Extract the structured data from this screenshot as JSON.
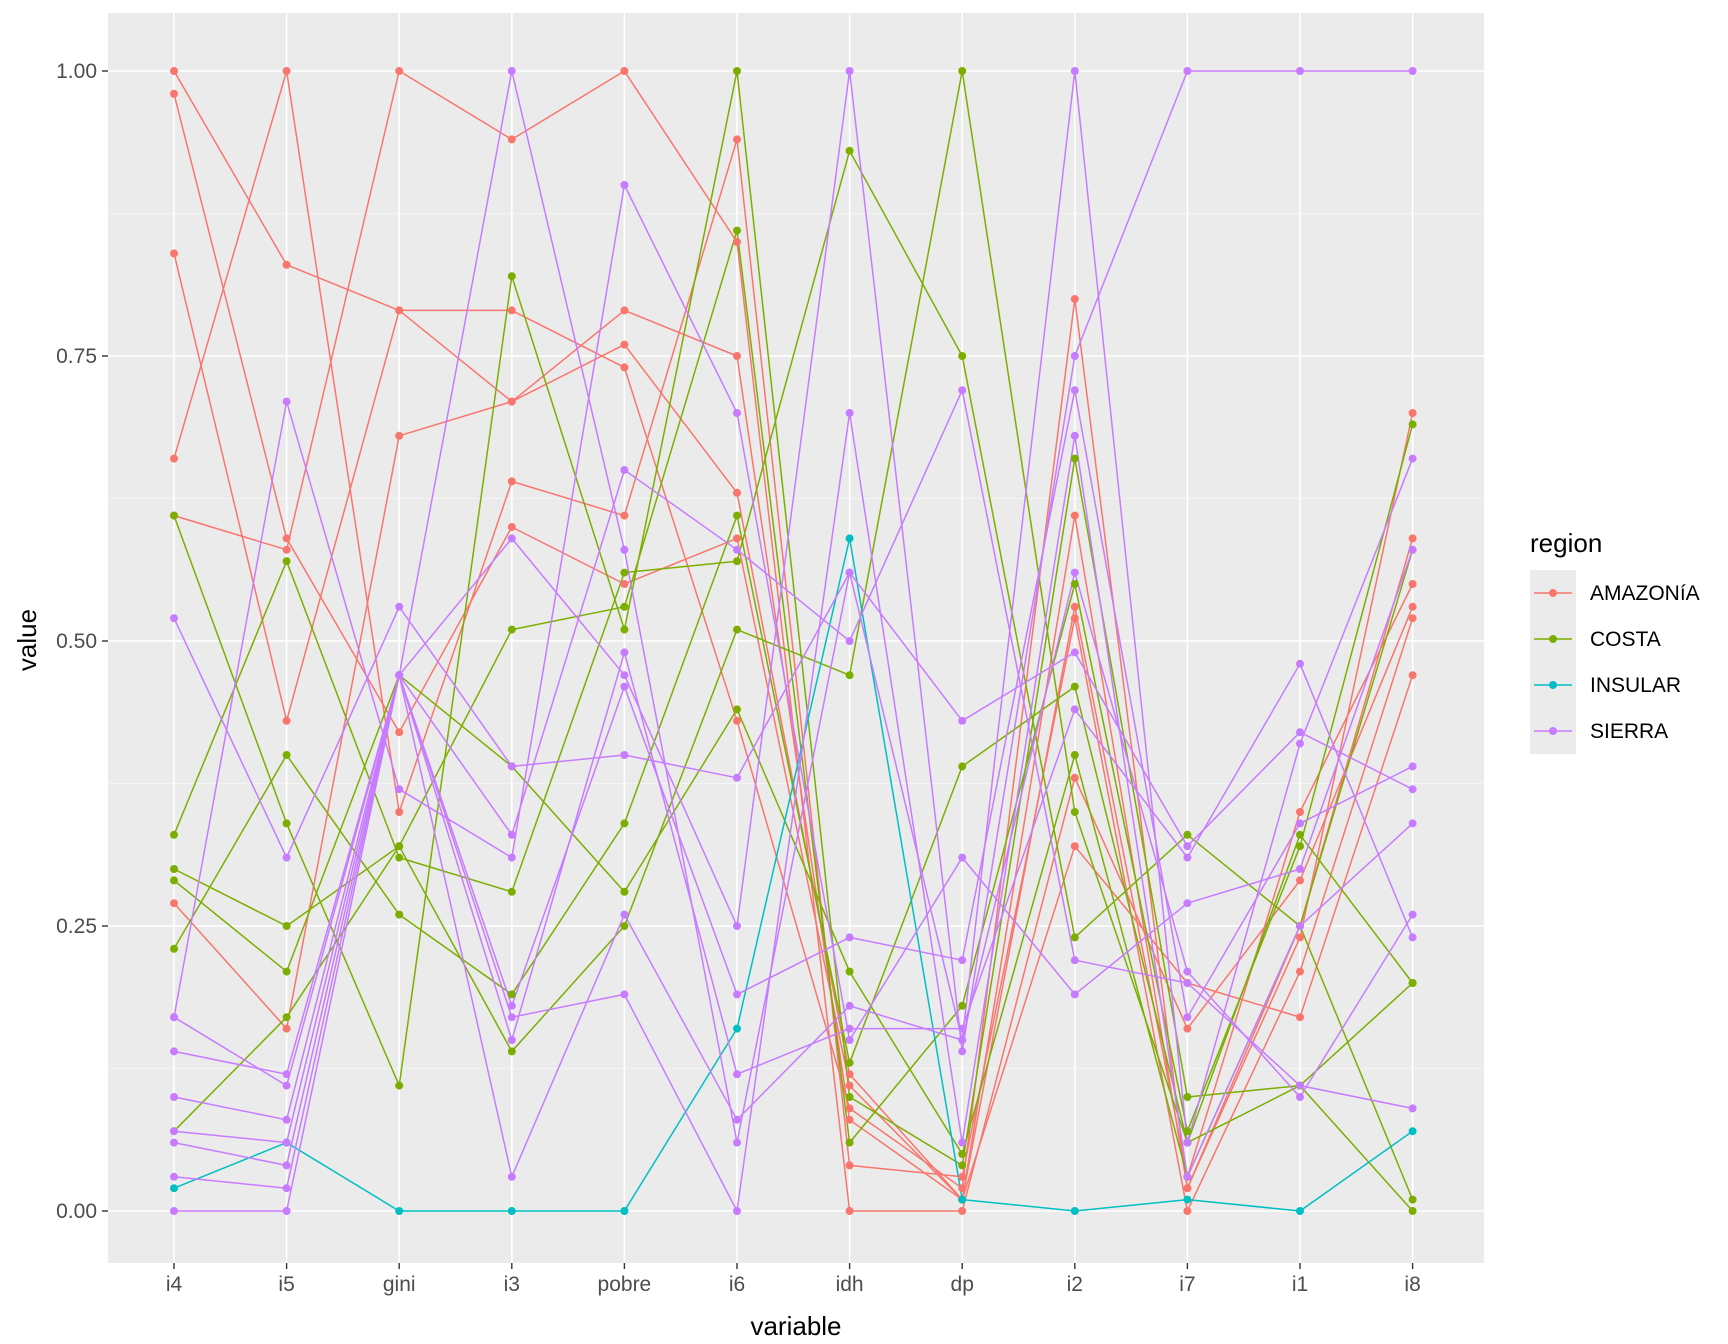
{
  "chart_data": {
    "type": "line",
    "subtype": "parallel-coordinates",
    "xlabel": "variable",
    "ylabel": "value",
    "ylim": [
      -0.05,
      1.05
    ],
    "yticks": [
      0,
      0.25,
      0.5,
      0.75,
      1
    ],
    "ytick_labels": [
      "0.00",
      "0.25",
      "0.50",
      "0.75",
      "1.00"
    ],
    "categories": [
      "i4",
      "i5",
      "gini",
      "i3",
      "pobre",
      "i6",
      "idh",
      "dp",
      "i2",
      "i7",
      "i1",
      "i8"
    ],
    "legend": {
      "title": "region",
      "position": "right",
      "entries": [
        {
          "name": "AMAZONíA",
          "color": "#F8766D"
        },
        {
          "name": "COSTA",
          "color": "#7CAE00"
        },
        {
          "name": "INSULAR",
          "color": "#00BFC4"
        },
        {
          "name": "SIERRA",
          "color": "#C77CFF"
        }
      ]
    },
    "series": [
      {
        "region": "AMAZONíA",
        "values": [
          1.0,
          0.83,
          0.79,
          0.79,
          0.74,
          0.43,
          0.09,
          0.02,
          0.8,
          0.02,
          0.24,
          0.7
        ]
      },
      {
        "region": "AMAZONíA",
        "values": [
          0.98,
          0.59,
          0.42,
          0.6,
          0.55,
          0.59,
          0.11,
          0.01,
          0.61,
          0.02,
          0.25,
          0.59
        ]
      },
      {
        "region": "AMAZONíA",
        "values": [
          0.84,
          0.43,
          0.79,
          0.71,
          0.76,
          0.63,
          0.12,
          0.01,
          0.53,
          0.03,
          0.35,
          0.55
        ]
      },
      {
        "region": "AMAZONíA",
        "values": [
          0.66,
          1.0,
          0.35,
          0.64,
          0.61,
          0.94,
          0.04,
          0.03,
          0.52,
          0.0,
          0.21,
          0.52
        ]
      },
      {
        "region": "AMAZONíA",
        "values": [
          0.61,
          0.58,
          1.0,
          0.94,
          1.0,
          0.85,
          0.0,
          0.0,
          0.38,
          0.16,
          0.29,
          0.53
        ]
      },
      {
        "region": "AMAZONíA",
        "values": [
          0.27,
          0.16,
          0.68,
          0.71,
          0.79,
          0.75,
          0.08,
          0.01,
          0.32,
          0.2,
          0.17,
          0.47
        ]
      },
      {
        "region": "COSTA",
        "values": [
          0.61,
          0.34,
          0.11,
          0.82,
          0.51,
          1.0,
          0.1,
          0.04,
          0.66,
          0.1,
          0.11,
          0.0
        ]
      },
      {
        "region": "COSTA",
        "values": [
          0.33,
          0.57,
          0.31,
          0.28,
          0.56,
          0.57,
          0.93,
          0.75,
          0.24,
          0.33,
          0.25,
          0.01
        ]
      },
      {
        "region": "COSTA",
        "values": [
          0.3,
          0.25,
          0.32,
          0.51,
          0.53,
          0.86,
          0.06,
          0.18,
          0.55,
          0.07,
          0.32,
          0.69
        ]
      },
      {
        "region": "COSTA",
        "values": [
          0.29,
          0.21,
          0.47,
          0.39,
          0.28,
          0.44,
          0.21,
          0.05,
          0.4,
          0.03,
          0.25,
          0.58
        ]
      },
      {
        "region": "COSTA",
        "values": [
          0.23,
          0.4,
          0.26,
          0.19,
          0.34,
          0.61,
          0.13,
          0.39,
          0.46,
          0.06,
          0.33,
          0.2
        ]
      },
      {
        "region": "COSTA",
        "values": [
          0.07,
          0.17,
          0.32,
          0.14,
          0.25,
          0.51,
          0.47,
          1.0,
          0.35,
          0.06,
          0.11,
          0.2
        ]
      },
      {
        "region": "INSULAR",
        "values": [
          0.02,
          0.06,
          0.0,
          0.0,
          0.0,
          0.16,
          0.59,
          0.01,
          0.0,
          0.01,
          0.0,
          0.07
        ]
      },
      {
        "region": "SIERRA",
        "values": [
          0.52,
          0.31,
          0.53,
          0.39,
          0.4,
          0.38,
          0.56,
          0.43,
          0.49,
          0.32,
          0.42,
          0.37
        ]
      },
      {
        "region": "SIERRA",
        "values": [
          0.17,
          0.71,
          0.37,
          0.31,
          0.9,
          0.7,
          0.15,
          0.31,
          0.19,
          0.27,
          0.3,
          0.58
        ]
      },
      {
        "region": "SIERRA",
        "values": [
          0.17,
          0.11,
          0.47,
          0.33,
          0.65,
          0.58,
          0.5,
          0.72,
          0.22,
          0.2,
          0.11,
          0.09
        ]
      },
      {
        "region": "SIERRA",
        "values": [
          0.14,
          0.12,
          0.47,
          0.59,
          0.47,
          0.25,
          1.0,
          0.14,
          0.75,
          1.0,
          1.0,
          1.0
        ]
      },
      {
        "region": "SIERRA",
        "values": [
          0.1,
          0.08,
          0.47,
          1.0,
          0.58,
          0.06,
          0.56,
          0.15,
          1.0,
          0.06,
          0.41,
          0.66
        ]
      },
      {
        "region": "SIERRA",
        "values": [
          0.07,
          0.06,
          0.47,
          0.18,
          0.46,
          0.19,
          0.24,
          0.22,
          0.72,
          0.17,
          0.34,
          0.39
        ]
      },
      {
        "region": "SIERRA",
        "values": [
          0.06,
          0.04,
          0.47,
          0.17,
          0.19,
          0.0,
          0.7,
          0.06,
          0.68,
          0.03,
          0.25,
          0.34
        ]
      },
      {
        "region": "SIERRA",
        "values": [
          0.03,
          0.02,
          0.47,
          0.03,
          0.26,
          0.08,
          0.18,
          0.15,
          0.56,
          0.21,
          0.1,
          0.26
        ]
      },
      {
        "region": "SIERRA",
        "values": [
          0.0,
          0.0,
          0.47,
          0.15,
          0.49,
          0.12,
          0.16,
          0.16,
          0.44,
          0.31,
          0.48,
          0.24
        ]
      }
    ]
  }
}
